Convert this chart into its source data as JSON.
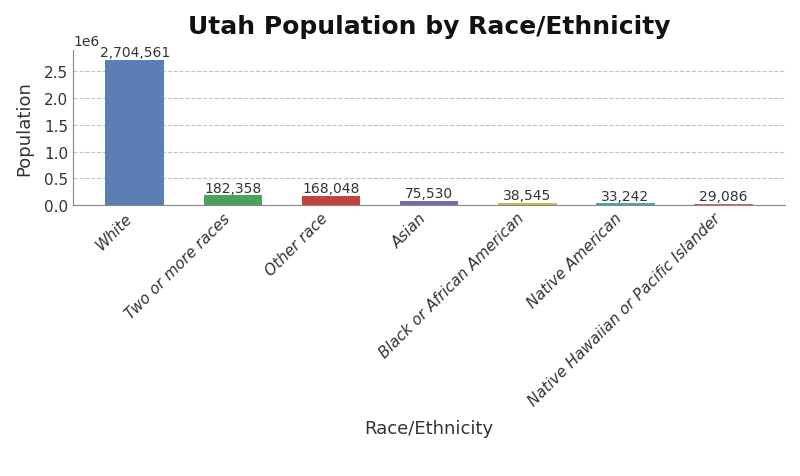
{
  "title": "Utah Population by Race/Ethnicity",
  "xlabel": "Race/Ethnicity",
  "ylabel": "Population",
  "categories": [
    "White",
    "Two or more races",
    "Other race",
    "Asian",
    "Black or African American",
    "Native American",
    "Native Hawaiian or Pacific Islander"
  ],
  "values": [
    2704561,
    182358,
    168048,
    75530,
    38545,
    33242,
    29086
  ],
  "bar_colors": [
    "#5b7fb5",
    "#4aa35c",
    "#c0433c",
    "#7b68b5",
    "#c8b84a",
    "#48a8aa",
    "#d46060"
  ],
  "labels": [
    "2,704,561",
    "182,358",
    "168,048",
    "75,530",
    "38,545",
    "33,242",
    "29,086"
  ],
  "background_color": "#ffffff",
  "grid_color": "#aaaaaa",
  "title_fontsize": 18,
  "axis_label_fontsize": 13,
  "tick_fontsize": 11,
  "bar_label_fontsize": 10,
  "yticks": [
    0.0,
    0.5,
    1.0,
    1.5,
    2.0,
    2.5
  ],
  "ylim": [
    0,
    2900000
  ]
}
